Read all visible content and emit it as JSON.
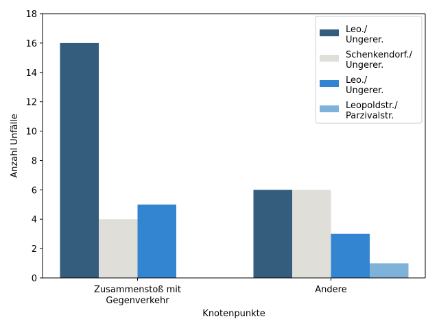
{
  "chart_data": {
    "type": "bar",
    "title": "",
    "xlabel": "Knotenpunkte",
    "ylabel": "Anzahl Unfälle",
    "ylim": [
      0,
      18
    ],
    "yticks": [
      0,
      2,
      4,
      6,
      8,
      10,
      12,
      14,
      16,
      18
    ],
    "categories": [
      [
        "Zusammenstoß mit",
        "Gegenverkehr"
      ],
      [
        "Andere"
      ]
    ],
    "series": [
      {
        "name": [
          "Leo./",
          "Ungerer."
        ],
        "color": "#335c7d",
        "values": [
          16,
          6
        ]
      },
      {
        "name": [
          "Schenkendorf./",
          "Ungerer."
        ],
        "color": "#e0ded8",
        "values": [
          4,
          6
        ]
      },
      {
        "name": [
          "Leo./",
          "Ungerer."
        ],
        "color": "#3385d1",
        "values": [
          5,
          3
        ]
      },
      {
        "name": [
          "Leopoldstr./",
          "Parzivalstr."
        ],
        "color": "#7fb2d9",
        "values": [
          0,
          1
        ]
      }
    ],
    "grid": false,
    "legend_position": "top-right"
  }
}
